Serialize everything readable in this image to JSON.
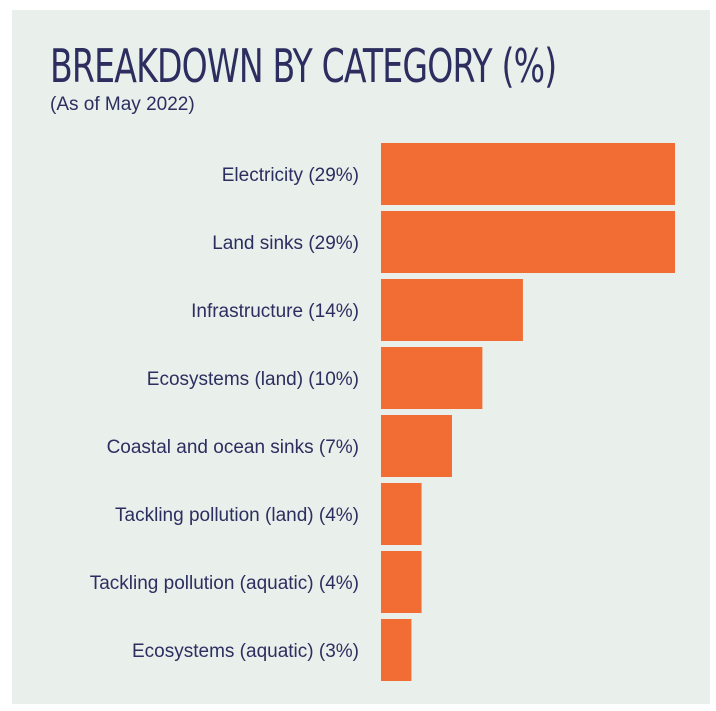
{
  "title": "BREAKDOWN BY CATEGORY (%)",
  "subtitle": "(As of May 2022)",
  "colors": {
    "background": "#e9efeb",
    "bar": "#f26d33",
    "text": "#2d2e5f"
  },
  "chart_data": {
    "type": "bar",
    "orientation": "horizontal",
    "title": "BREAKDOWN BY CATEGORY (%)",
    "subtitle": "(As of May 2022)",
    "categories": [
      "Electricity (29%)",
      "Land sinks (29%)",
      "Infrastructure (14%)",
      "Ecosystems (land) (10%)",
      "Coastal and ocean sinks (7%)",
      "Tackling pollution (land) (4%)",
      "Tackling pollution (aquatic) (4%)",
      "Ecosystems (aquatic) (3%)"
    ],
    "values": [
      29,
      29,
      14,
      10,
      7,
      4,
      4,
      3
    ],
    "xlim": [
      0,
      29
    ],
    "grid": false,
    "legend": "none"
  }
}
